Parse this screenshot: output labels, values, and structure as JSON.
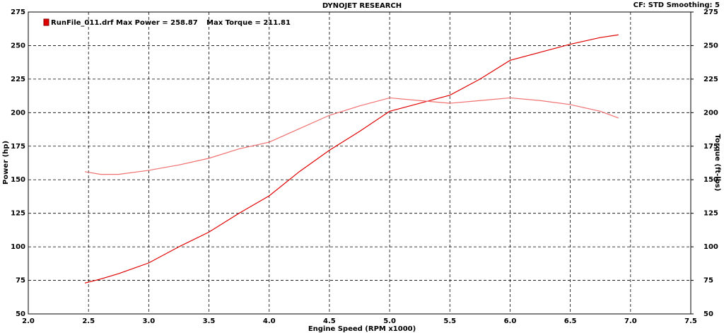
{
  "chart_data": {
    "type": "line",
    "title": "DYNOJET RESEARCH",
    "subtitle": "CF: STD  Smoothing: 5",
    "xlabel": "Engine Speed (RPM x1000)",
    "ylabel": "Power (hp)",
    "y2label": "Torque (ft-lbs)",
    "x": [
      2.47,
      2.6,
      2.75,
      3.0,
      3.25,
      3.5,
      3.75,
      4.0,
      4.25,
      4.5,
      4.75,
      5.0,
      5.25,
      5.5,
      5.75,
      6.0,
      6.25,
      6.5,
      6.75,
      6.9
    ],
    "series": [
      {
        "name": "RunFile_011.drf Max Power = 258.87",
        "color": "#e00000",
        "values": [
          73,
          76,
          80,
          88,
          100,
          111,
          125,
          138,
          156,
          172,
          186,
          201,
          207,
          213,
          225,
          239,
          245,
          251,
          256,
          258
        ]
      },
      {
        "name": "Max Torque = 211.81",
        "color": "#f07070",
        "axis": "y2",
        "values": [
          156,
          154,
          154,
          157,
          161,
          166,
          173,
          178,
          188,
          198,
          205,
          211,
          209,
          207,
          209,
          211,
          209,
          206,
          201,
          196
        ]
      }
    ],
    "xlim": [
      2.0,
      7.5
    ],
    "xticks": [
      {
        "value": 2,
        "label": "2.0"
      },
      {
        "value": 2.5,
        "label": "2.5"
      },
      {
        "value": 3,
        "label": "3.0"
      },
      {
        "value": 3.5,
        "label": "3.5"
      },
      {
        "value": 4,
        "label": "4.0"
      },
      {
        "value": 4.5,
        "label": "4.5"
      },
      {
        "value": 5,
        "label": "5.0"
      },
      {
        "value": 5.5,
        "label": "5.5"
      },
      {
        "value": 6,
        "label": "6.0"
      },
      {
        "value": 6.5,
        "label": "6.5"
      },
      {
        "value": 7,
        "label": "7.0"
      },
      {
        "value": 7.5,
        "label": "7.5"
      }
    ],
    "ylim": [
      50,
      275
    ],
    "yticks": [
      50,
      75,
      100,
      125,
      150,
      175,
      200,
      225,
      250,
      275
    ],
    "y2lim": [
      50,
      275
    ],
    "y2ticks": [
      50,
      75,
      100,
      125,
      150,
      175,
      200,
      225,
      250,
      275
    ],
    "grid": true
  }
}
